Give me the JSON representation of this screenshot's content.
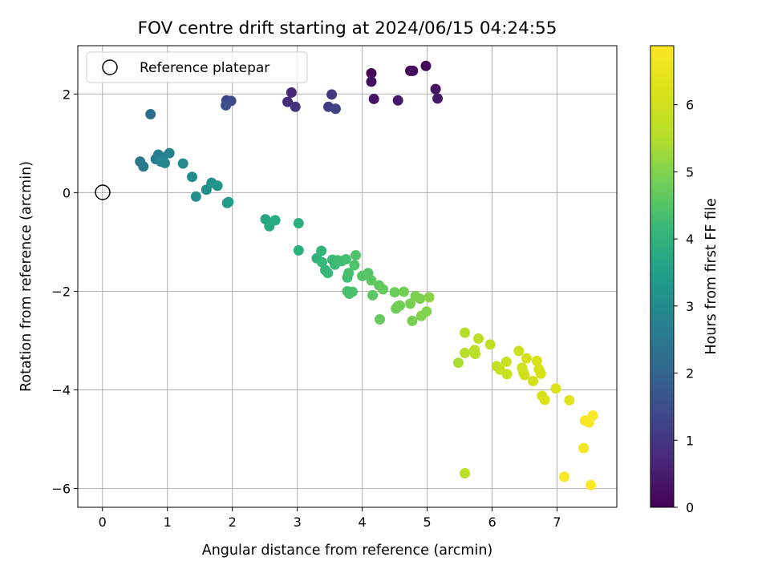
{
  "chart_data": {
    "type": "scatter",
    "title": "FOV centre drift starting at 2024/06/15 04:24:55",
    "xlabel": "Angular distance from reference (arcmin)",
    "ylabel": "Rotation from reference (arcmin)",
    "colorbar_label": "Hours from first FF file",
    "colormap": "viridis",
    "xlim": [
      -0.38,
      7.92
    ],
    "ylim": [
      -6.38,
      2.98
    ],
    "clim": [
      0,
      6.88
    ],
    "x_ticks": [
      0,
      1,
      2,
      3,
      4,
      5,
      6,
      7
    ],
    "y_ticks": [
      -6,
      -4,
      -2,
      0,
      2
    ],
    "colorbar_ticks": [
      0,
      1,
      2,
      3,
      4,
      5,
      6
    ],
    "grid": true,
    "legend": {
      "placement": "top-left",
      "entries": [
        "Reference platepar"
      ]
    },
    "reference_point": {
      "x": 0,
      "y": 0
    },
    "points": [
      [
        4.14,
        2.42,
        0.05
      ],
      [
        4.98,
        2.57,
        0.1
      ],
      [
        4.74,
        2.47,
        0.15
      ],
      [
        4.78,
        2.47,
        0.2
      ],
      [
        4.14,
        2.25,
        0.25
      ],
      [
        5.13,
        2.1,
        0.3
      ],
      [
        4.18,
        1.9,
        0.35
      ],
      [
        4.55,
        1.87,
        0.4
      ],
      [
        5.16,
        1.91,
        0.45
      ],
      [
        2.91,
        2.03,
        0.7
      ],
      [
        2.85,
        1.84,
        0.8
      ],
      [
        2.97,
        1.74,
        0.9
      ],
      [
        3.53,
        1.99,
        1.0
      ],
      [
        3.48,
        1.74,
        1.1
      ],
      [
        3.59,
        1.7,
        1.2
      ],
      [
        1.91,
        1.87,
        1.3
      ],
      [
        1.98,
        1.86,
        1.4
      ],
      [
        1.9,
        1.77,
        1.5
      ],
      [
        0.74,
        1.59,
        2.2
      ],
      [
        0.58,
        0.63,
        2.5
      ],
      [
        0.63,
        0.53,
        2.55
      ],
      [
        0.82,
        0.68,
        2.6
      ],
      [
        0.86,
        0.77,
        2.65
      ],
      [
        0.93,
        0.72,
        2.7
      ],
      [
        1.03,
        0.8,
        2.75
      ],
      [
        0.9,
        0.63,
        2.8
      ],
      [
        0.96,
        0.6,
        2.85
      ],
      [
        1.24,
        0.59,
        2.9
      ],
      [
        1.38,
        0.32,
        3.0
      ],
      [
        1.44,
        -0.08,
        3.05
      ],
      [
        1.6,
        0.06,
        3.1
      ],
      [
        1.68,
        0.2,
        3.15
      ],
      [
        1.77,
        0.14,
        3.2
      ],
      [
        1.92,
        -0.21,
        3.3
      ],
      [
        1.94,
        -0.19,
        3.35
      ],
      [
        2.51,
        -0.54,
        3.7
      ],
      [
        2.57,
        -0.68,
        3.75
      ],
      [
        2.66,
        -0.56,
        3.8
      ],
      [
        3.02,
        -0.62,
        3.9
      ],
      [
        3.02,
        -1.17,
        3.95
      ],
      [
        3.3,
        -1.33,
        4.0
      ],
      [
        3.37,
        -1.18,
        4.05
      ],
      [
        3.38,
        -1.41,
        4.1
      ],
      [
        3.43,
        -1.57,
        4.1
      ],
      [
        3.47,
        -1.63,
        4.15
      ],
      [
        3.54,
        -1.36,
        4.2
      ],
      [
        3.58,
        -1.46,
        4.2
      ],
      [
        3.62,
        -1.37,
        4.25
      ],
      [
        3.68,
        -1.39,
        4.25
      ],
      [
        3.75,
        -1.35,
        4.3
      ],
      [
        3.77,
        -1.72,
        4.3
      ],
      [
        3.79,
        -1.63,
        4.35
      ],
      [
        3.77,
        -2.0,
        4.35
      ],
      [
        3.8,
        -2.05,
        4.4
      ],
      [
        3.85,
        -2.01,
        4.4
      ],
      [
        3.88,
        -1.47,
        4.45
      ],
      [
        3.9,
        -1.27,
        4.45
      ],
      [
        4.0,
        -1.69,
        4.5
      ],
      [
        4.09,
        -1.63,
        4.55
      ],
      [
        4.14,
        -1.78,
        4.6
      ],
      [
        4.16,
        -2.08,
        4.6
      ],
      [
        4.26,
        -1.88,
        4.65
      ],
      [
        4.27,
        -2.57,
        4.7
      ],
      [
        4.32,
        -1.96,
        4.7
      ],
      [
        4.5,
        -2.02,
        4.75
      ],
      [
        4.52,
        -2.35,
        4.8
      ],
      [
        4.55,
        -2.3,
        4.8
      ],
      [
        4.58,
        -2.29,
        4.85
      ],
      [
        4.64,
        -2.01,
        4.85
      ],
      [
        4.74,
        -2.25,
        4.9
      ],
      [
        4.77,
        -2.6,
        4.9
      ],
      [
        4.82,
        -2.1,
        4.95
      ],
      [
        4.89,
        -2.15,
        4.95
      ],
      [
        4.91,
        -2.5,
        5.0
      ],
      [
        4.99,
        -2.41,
        5.0
      ],
      [
        5.03,
        -2.12,
        5.05
      ],
      [
        5.48,
        -3.45,
        5.4
      ],
      [
        5.58,
        -2.84,
        5.5
      ],
      [
        5.58,
        -3.25,
        5.55
      ],
      [
        5.73,
        -3.19,
        5.6
      ],
      [
        5.74,
        -3.27,
        5.6
      ],
      [
        5.79,
        -2.96,
        5.65
      ],
      [
        5.97,
        -3.08,
        5.7
      ],
      [
        6.07,
        -3.52,
        5.8
      ],
      [
        6.12,
        -3.59,
        5.85
      ],
      [
        6.22,
        -3.43,
        5.9
      ],
      [
        6.23,
        -3.68,
        5.9
      ],
      [
        6.41,
        -3.21,
        6.0
      ],
      [
        6.46,
        -3.55,
        6.0
      ],
      [
        6.48,
        -3.64,
        6.05
      ],
      [
        6.5,
        -3.7,
        6.05
      ],
      [
        6.53,
        -3.36,
        6.1
      ],
      [
        6.63,
        -3.82,
        6.1
      ],
      [
        6.69,
        -3.41,
        6.15
      ],
      [
        6.72,
        -3.58,
        6.15
      ],
      [
        6.75,
        -3.67,
        6.2
      ],
      [
        6.77,
        -4.12,
        6.2
      ],
      [
        6.81,
        -4.2,
        6.25
      ],
      [
        6.98,
        -3.97,
        6.25
      ],
      [
        7.19,
        -4.21,
        6.3
      ],
      [
        5.58,
        -5.69,
        5.6
      ],
      [
        7.41,
        -5.18,
        6.7
      ],
      [
        7.43,
        -4.62,
        6.75
      ],
      [
        7.49,
        -4.66,
        6.78
      ],
      [
        7.55,
        -4.52,
        6.8
      ],
      [
        7.11,
        -5.76,
        6.82
      ],
      [
        7.52,
        -5.93,
        6.85
      ]
    ]
  }
}
